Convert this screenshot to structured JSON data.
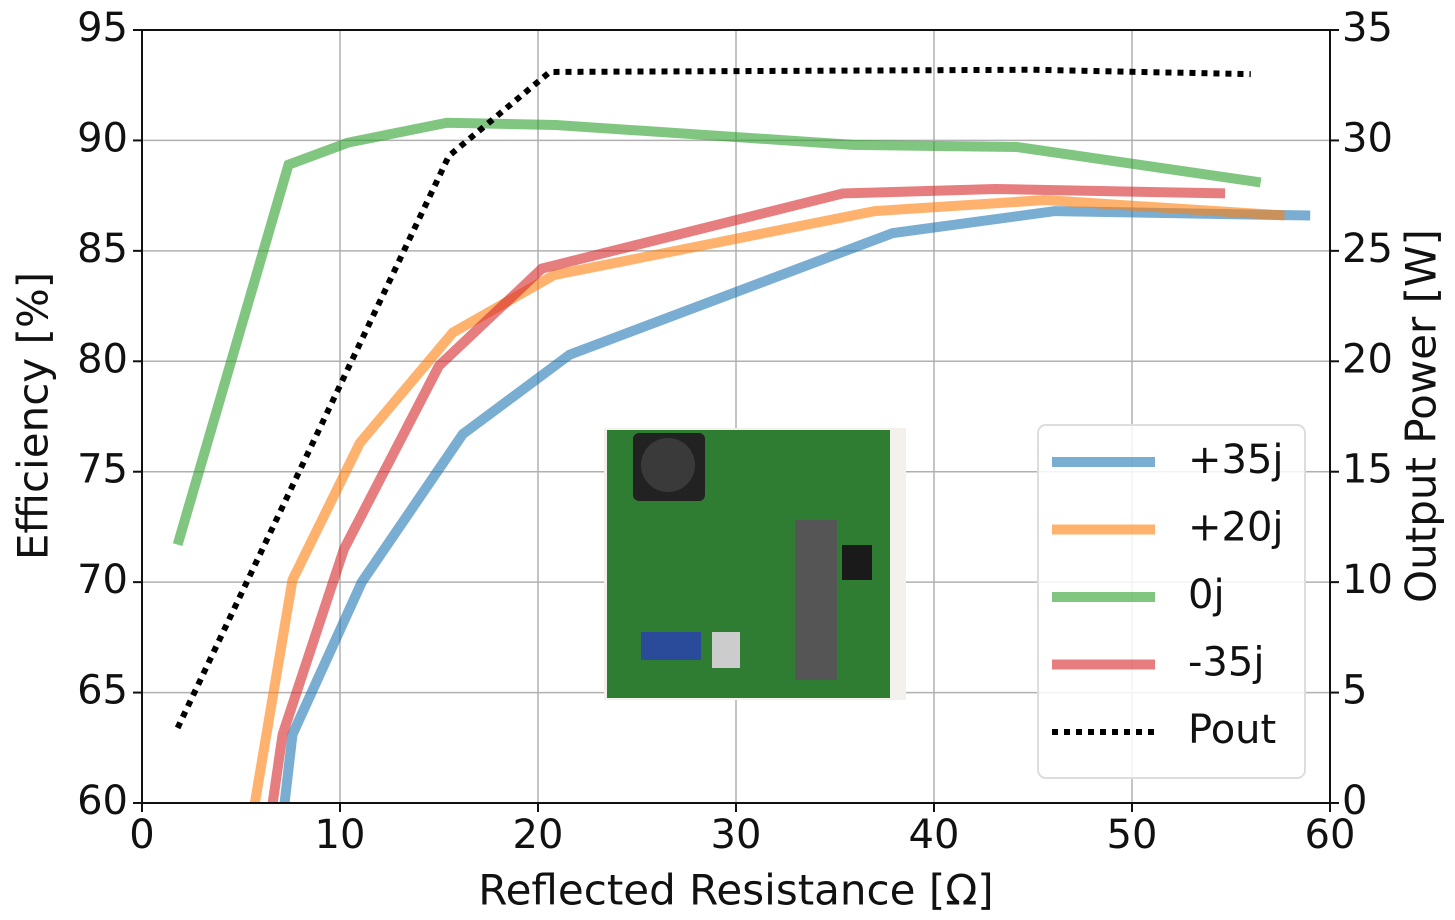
{
  "chart_data": {
    "type": "line",
    "x_label": "Reflected Resistance [Ω]",
    "y_label": "Efficiency [%]",
    "y2_label": "Output Power [W]",
    "xlim": [
      0,
      60
    ],
    "xticks": [
      0,
      10,
      20,
      30,
      40,
      50,
      60
    ],
    "ylim": [
      60,
      95
    ],
    "yticks": [
      60,
      65,
      70,
      75,
      80,
      85,
      90,
      95
    ],
    "y2lim": [
      0,
      35
    ],
    "y2ticks": [
      0,
      5,
      10,
      15,
      20,
      25,
      30,
      35
    ],
    "grid": true,
    "legend": "lower right",
    "series": [
      {
        "name": "+35j",
        "color": "#1f77b4",
        "x": [
          7.2,
          7.6,
          11.1,
          16.2,
          21.6,
          37.9,
          46.1,
          59
        ],
        "values": [
          60,
          63.1,
          70,
          76.7,
          80.3,
          85.8,
          86.8,
          86.6
        ]
      },
      {
        "name": "+20j",
        "color": "#ff7f0e",
        "x": [
          5.7,
          7.6,
          11,
          15.7,
          20.8,
          37,
          45.6,
          57.7
        ],
        "values": [
          60,
          70.1,
          76.3,
          81.3,
          83.9,
          86.8,
          87.3,
          86.6
        ]
      },
      {
        "name": "0j",
        "color": "#2ca02c",
        "x": [
          1.8,
          7.4,
          10.4,
          15.4,
          20.9,
          35.9,
          44.2,
          56.5
        ],
        "values": [
          71.7,
          88.9,
          89.9,
          90.8,
          90.7,
          89.8,
          89.7,
          88.1
        ]
      },
      {
        "name": "-35j",
        "color": "#d62728",
        "x": [
          6.6,
          7.1,
          10.2,
          15,
          20.2,
          35.4,
          43.1,
          54.7
        ],
        "values": [
          60,
          63.1,
          71.5,
          79.8,
          84.2,
          87.6,
          87.8,
          87.6
        ]
      },
      {
        "name": "Pout",
        "color": "#000000",
        "linestyle": "dotted",
        "axis": "y2",
        "x": [
          1.8,
          15.5,
          20.6,
          45,
          56
        ],
        "values": [
          3.4,
          29.3,
          33.1,
          33.2,
          33.0
        ]
      }
    ]
  }
}
